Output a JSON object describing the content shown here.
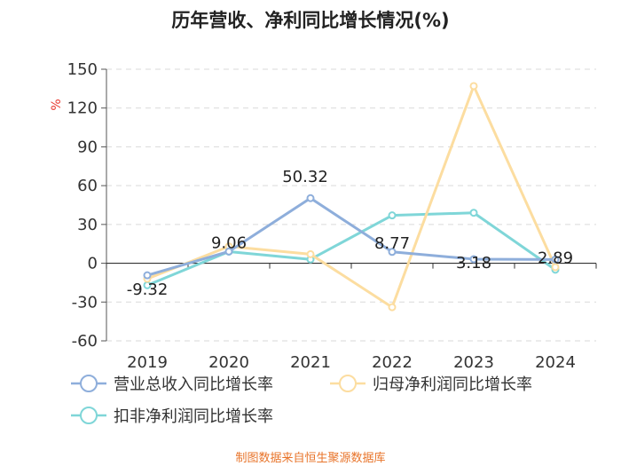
{
  "chart_data": {
    "type": "line",
    "title": "历年营收、净利同比增长情况(%)",
    "unit_label": "%",
    "categories": [
      "2019",
      "2020",
      "2021",
      "2022",
      "2023",
      "2024"
    ],
    "ylim": [
      -60,
      150
    ],
    "yticks": [
      -60,
      -30,
      0,
      30,
      60,
      90,
      120,
      150
    ],
    "grid": true,
    "legend_position": "bottom",
    "series": [
      {
        "name": "营业总收入同比增长率",
        "color": "#8eaedb",
        "values": [
          -9.32,
          9.06,
          50.32,
          8.77,
          3.18,
          2.89
        ],
        "labels": [
          "-9.32",
          "9.06",
          "50.32",
          "8.77",
          "3.18",
          "2.89"
        ]
      },
      {
        "name": "归母净利润同比增长率",
        "color": "#fcdda0",
        "values": [
          -12,
          13,
          7,
          -34,
          137,
          -3
        ]
      },
      {
        "name": "扣非净利润同比增长率",
        "color": "#7fd6d8",
        "values": [
          -17,
          9,
          3,
          37,
          39,
          -5
        ]
      }
    ]
  },
  "footer": "制图数据来自恒生聚源数据库"
}
